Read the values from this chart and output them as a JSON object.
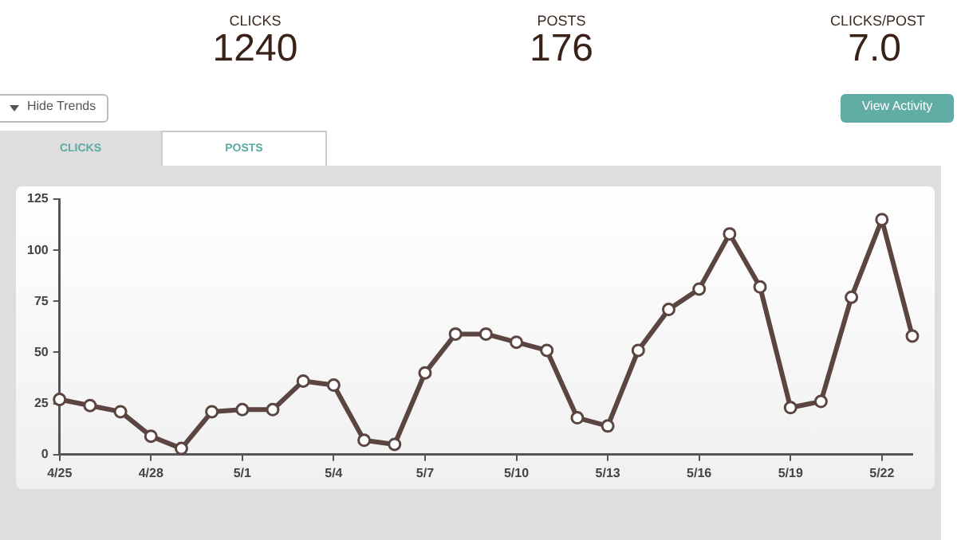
{
  "chart_data": {
    "type": "line",
    "annotations": [
      "CLICKS",
      "1240",
      "POSTS",
      "176",
      "CLICKS/POST",
      "7.0",
      "Hide Trends",
      "View Activity",
      "CLICKS",
      "POSTS"
    ],
    "categories": [
      "4/25",
      null,
      null,
      "4/28",
      null,
      null,
      "5/1",
      null,
      null,
      "5/4",
      null,
      null,
      "5/7",
      null,
      null,
      "5/10",
      null,
      null,
      "5/13",
      null,
      null,
      "5/16",
      null,
      null,
      "5/19",
      null,
      null,
      "5/22",
      null
    ],
    "series": [
      {
        "color": "#5b4540",
        "values": [
          27,
          24,
          21,
          9,
          3,
          21,
          22,
          22,
          36,
          34,
          7,
          5,
          40,
          59,
          59,
          55,
          51,
          18,
          14,
          51,
          71,
          81,
          108,
          82,
          23,
          26,
          77,
          115,
          58
        ]
      }
    ],
    "ylim": [
      0,
      125
    ],
    "yticks": [
      0,
      25,
      50,
      75,
      100,
      125
    ],
    "grid": false,
    "legend": false,
    "marker": "circle",
    "line_style": "solid"
  }
}
